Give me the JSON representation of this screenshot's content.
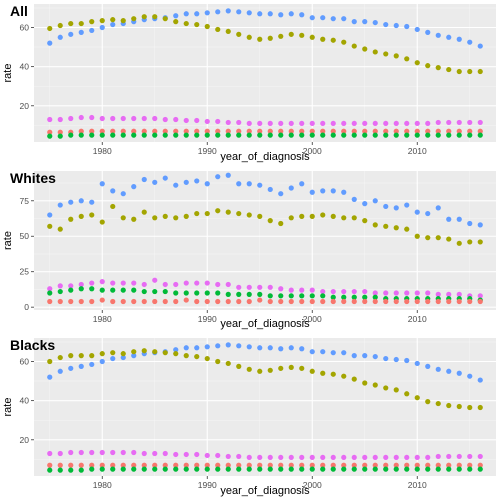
{
  "chart_data": [
    {
      "type": "scatter",
      "title": "All",
      "xlabel": "year_of_diagnosis",
      "ylabel": "rate",
      "xlim": [
        1973.5,
        2017.5
      ],
      "ylim": [
        1.5,
        72
      ],
      "x_ticks": [
        1980,
        1990,
        2000,
        2010
      ],
      "y_ticks": [
        20,
        40,
        60
      ],
      "grid": true,
      "x": [
        1975,
        1976,
        1977,
        1978,
        1979,
        1980,
        1981,
        1982,
        1983,
        1984,
        1985,
        1986,
        1987,
        1988,
        1989,
        1990,
        1991,
        1992,
        1993,
        1994,
        1995,
        1996,
        1997,
        1998,
        1999,
        2000,
        2001,
        2002,
        2003,
        2004,
        2005,
        2006,
        2007,
        2008,
        2009,
        2010,
        2011,
        2012,
        2013,
        2014,
        2015,
        2016
      ],
      "series": [
        {
          "color": "#619CFF",
          "values": [
            52,
            55,
            56.5,
            57.5,
            58.5,
            60,
            61.5,
            62,
            63,
            64,
            64.5,
            65,
            66,
            67,
            67,
            67.5,
            68,
            68.5,
            68,
            67.5,
            67,
            67,
            66.5,
            67,
            66.5,
            65,
            65,
            64.5,
            64.5,
            63,
            63,
            62.5,
            61.5,
            61,
            60.5,
            59,
            57.5,
            56,
            55,
            54,
            52.5,
            50.5
          ]
        },
        {
          "color": "#A3A500",
          "values": [
            59.5,
            61,
            62,
            62,
            63,
            63.5,
            64,
            63.5,
            64.5,
            65.5,
            65.5,
            64.5,
            63,
            62,
            61.5,
            60.5,
            59,
            58,
            56.5,
            55,
            54,
            54.5,
            55.5,
            56.5,
            56,
            55,
            54,
            53.5,
            52.5,
            50.5,
            49,
            47.5,
            46.5,
            45.5,
            44,
            42,
            40.5,
            39.5,
            38.5,
            37.5,
            37.5,
            37.5
          ]
        },
        {
          "color": "#E76BF3",
          "values": [
            13,
            13,
            13.5,
            14,
            14,
            13.5,
            13.5,
            13.5,
            13.5,
            13.5,
            13.5,
            13,
            13,
            12.5,
            12.5,
            12,
            12,
            11.5,
            11.5,
            11,
            11,
            11,
            11,
            11,
            11,
            11,
            11,
            11,
            11,
            11,
            11,
            11,
            11,
            11,
            11,
            11,
            11,
            11.5,
            11.5,
            11.5,
            11.5,
            11.5
          ]
        },
        {
          "color": "#F8766D",
          "values": [
            6.5,
            6.5,
            6.5,
            7,
            7,
            7,
            7,
            7,
            7,
            7,
            7,
            7,
            7,
            7,
            7,
            7,
            7,
            7,
            7,
            7,
            7,
            7,
            7,
            7,
            7,
            7,
            7,
            7,
            7,
            7,
            7,
            7,
            7,
            7,
            7,
            7,
            7,
            7,
            7,
            7,
            7,
            7
          ]
        },
        {
          "color": "#00BA38",
          "values": [
            4.5,
            4.5,
            5,
            5,
            5,
            5,
            5,
            5,
            5,
            5,
            5,
            5,
            5,
            5,
            5,
            5,
            5,
            5,
            5,
            5,
            5,
            5,
            5,
            5,
            5,
            5,
            5,
            5,
            5,
            5,
            5,
            5,
            5,
            5,
            5,
            5,
            5,
            5,
            5,
            5,
            5,
            5
          ]
        }
      ]
    },
    {
      "type": "scatter",
      "title": "Whites",
      "xlabel": "year_of_diagnosis",
      "ylabel": "rate",
      "xlim": [
        1973.5,
        2017.5
      ],
      "ylim": [
        -2,
        96
      ],
      "x_ticks": [
        1980,
        1990,
        2000,
        2010
      ],
      "y_ticks": [
        0,
        25,
        50,
        75
      ],
      "grid": true,
      "x": [
        1975,
        1976,
        1977,
        1978,
        1979,
        1980,
        1981,
        1982,
        1983,
        1984,
        1985,
        1986,
        1987,
        1988,
        1989,
        1990,
        1991,
        1992,
        1993,
        1994,
        1995,
        1996,
        1997,
        1998,
        1999,
        2000,
        2001,
        2002,
        2003,
        2004,
        2005,
        2006,
        2007,
        2008,
        2009,
        2010,
        2011,
        2012,
        2013,
        2014,
        2015,
        2016
      ],
      "series": [
        {
          "color": "#619CFF",
          "values": [
            65,
            72,
            74,
            75,
            74,
            87,
            82,
            80,
            85,
            90,
            88,
            91,
            86,
            88,
            89,
            87,
            92,
            93,
            87,
            87,
            86,
            83,
            80,
            84,
            87,
            81,
            82,
            82,
            81,
            76,
            73,
            75,
            71,
            70,
            72,
            67,
            66,
            70,
            62,
            62,
            59,
            58
          ]
        },
        {
          "color": "#A3A500",
          "values": [
            57,
            55,
            62,
            64,
            65,
            60,
            71,
            63,
            62,
            67,
            63,
            64,
            63,
            64,
            66,
            66,
            68,
            67,
            66,
            65,
            64,
            61,
            59,
            63,
            64,
            64,
            65,
            64,
            63,
            63,
            61,
            58,
            57,
            56,
            55,
            50,
            49,
            49,
            48,
            45,
            46,
            46
          ]
        },
        {
          "color": "#E76BF3",
          "values": [
            13,
            15,
            15,
            16,
            17,
            18,
            17,
            17,
            17,
            16,
            19,
            16,
            16,
            17,
            17,
            17,
            16,
            16,
            14,
            14,
            14,
            14,
            13,
            12,
            12,
            12,
            11,
            11,
            11,
            11,
            11,
            10,
            10,
            10,
            10,
            10,
            10,
            9,
            9,
            9,
            8,
            8
          ]
        },
        {
          "color": "#00BA38",
          "values": [
            10,
            11,
            12,
            13,
            13,
            12,
            12,
            12,
            12,
            11,
            11,
            11,
            10,
            10,
            10,
            10,
            10,
            9,
            9,
            9,
            9,
            8,
            8,
            8,
            8,
            8,
            8,
            7,
            7,
            7,
            7,
            7,
            6,
            6,
            6,
            6,
            6,
            6,
            6,
            6,
            6,
            5
          ]
        },
        {
          "color": "#F8766D",
          "values": [
            4,
            4,
            4,
            4,
            4,
            5,
            4,
            4,
            4,
            4,
            4,
            4,
            4,
            5,
            4,
            4,
            4,
            4,
            4,
            4,
            5,
            4,
            4,
            4,
            4,
            4,
            4,
            4,
            4,
            4,
            4,
            4,
            4,
            4,
            4,
            4,
            4,
            4,
            4,
            4,
            4,
            4
          ]
        }
      ]
    },
    {
      "type": "scatter",
      "title": "Blacks",
      "xlabel": "year_of_diagnosis",
      "ylabel": "rate",
      "xlim": [
        1973.5,
        2017.5
      ],
      "ylim": [
        1.5,
        72
      ],
      "x_ticks": [
        1980,
        1990,
        2000,
        2010
      ],
      "y_ticks": [
        20,
        40,
        60
      ],
      "grid": true,
      "x": [
        1975,
        1976,
        1977,
        1978,
        1979,
        1980,
        1981,
        1982,
        1983,
        1984,
        1985,
        1986,
        1987,
        1988,
        1989,
        1990,
        1991,
        1992,
        1993,
        1994,
        1995,
        1996,
        1997,
        1998,
        1999,
        2000,
        2001,
        2002,
        2003,
        2004,
        2005,
        2006,
        2007,
        2008,
        2009,
        2010,
        2011,
        2012,
        2013,
        2014,
        2015,
        2016
      ],
      "series": [
        {
          "color": "#619CFF",
          "values": [
            52,
            55,
            56.5,
            57.5,
            58.5,
            60,
            61.5,
            62,
            63,
            64,
            64.5,
            65,
            66,
            67,
            67,
            67.5,
            68,
            68.5,
            68,
            67.5,
            67,
            67,
            66.5,
            67,
            66.5,
            65,
            65,
            64.5,
            64.5,
            63,
            63,
            62.5,
            61.5,
            61,
            60.5,
            59,
            57.5,
            56,
            55,
            54,
            52.5,
            50.5
          ]
        },
        {
          "color": "#A3A500",
          "values": [
            60,
            62,
            63,
            63,
            63,
            64,
            64.5,
            64,
            65,
            65.5,
            65,
            64.5,
            64,
            63,
            62.5,
            61.5,
            60,
            59,
            57.5,
            56,
            55,
            55.5,
            56.5,
            57,
            56.5,
            55,
            54,
            53.5,
            52.5,
            51,
            49,
            48,
            46.5,
            45.5,
            43.5,
            41.5,
            39.5,
            38.5,
            37.5,
            37,
            36.5,
            36.5
          ]
        },
        {
          "color": "#E76BF3",
          "values": [
            13,
            13,
            13.5,
            13.5,
            13.5,
            13.5,
            13.5,
            13.5,
            13.5,
            13,
            13,
            13,
            12.5,
            12.5,
            12.5,
            12,
            12,
            11.5,
            11.5,
            11,
            11,
            11,
            11,
            11,
            11,
            11,
            11,
            11,
            11,
            11,
            11,
            11,
            11,
            11,
            11,
            11,
            11,
            11.5,
            11.5,
            11.5,
            11.5,
            11.5
          ]
        },
        {
          "color": "#F8766D",
          "values": [
            7,
            7,
            7,
            7,
            7,
            7,
            7,
            7,
            7,
            7,
            7,
            7,
            7,
            7,
            7,
            7,
            7,
            7,
            7,
            7,
            7,
            7,
            7,
            7,
            7,
            7,
            7,
            7,
            7,
            7,
            7,
            7,
            7,
            7,
            7,
            7,
            7,
            7,
            7,
            7,
            7,
            7
          ]
        },
        {
          "color": "#00BA38",
          "values": [
            4.5,
            4.5,
            4.5,
            4.5,
            5,
            5,
            5,
            5,
            5,
            5,
            5,
            5,
            5,
            5,
            5,
            5,
            5,
            5,
            5,
            5,
            5,
            5,
            5,
            5,
            5,
            5,
            5,
            5,
            5,
            5,
            5,
            5,
            5,
            5,
            5,
            5,
            5,
            5,
            5,
            5,
            5,
            5
          ]
        }
      ]
    }
  ]
}
